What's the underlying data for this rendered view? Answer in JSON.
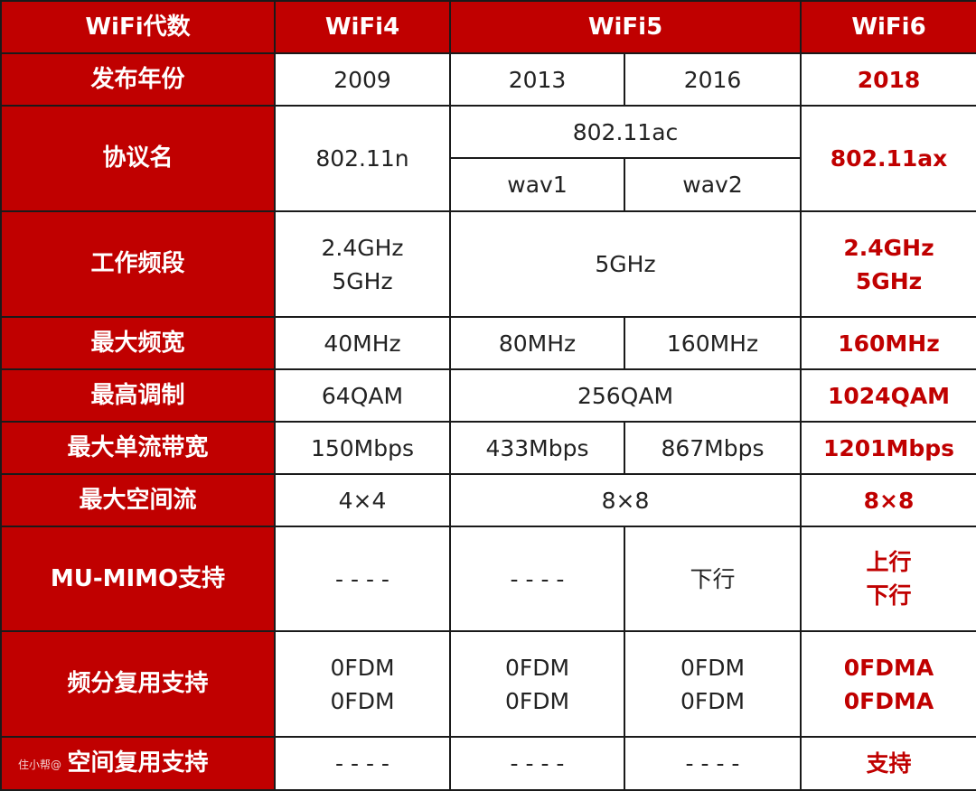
{
  "colors": {
    "accent": "#c00000",
    "border": "#1a1a1a"
  },
  "header": {
    "label": "WiFi代数",
    "wifi4": "WiFi4",
    "wifi5": "WiFi5",
    "wifi6": "WiFi6"
  },
  "rows": {
    "year": {
      "label": "发布年份",
      "wifi4": "2009",
      "wifi5a": "2013",
      "wifi5b": "2016",
      "wifi6": "2018"
    },
    "protocol": {
      "label": "协议名",
      "wifi4": "802.11n",
      "wifi5": "802.11ac",
      "wifi5a": "wav1",
      "wifi5b": "wav2",
      "wifi6": "802.11ax"
    },
    "band": {
      "label": "工作频段",
      "wifi4": [
        "2.4GHz",
        "5GHz"
      ],
      "wifi5": "5GHz",
      "wifi6": [
        "2.4GHz",
        "5GHz"
      ]
    },
    "bandwidth": {
      "label": "最大频宽",
      "wifi4": "40MHz",
      "wifi5a": "80MHz",
      "wifi5b": "160MHz",
      "wifi6": "160MHz"
    },
    "modulation": {
      "label": "最高调制",
      "wifi4": "64QAM",
      "wifi5": "256QAM",
      "wifi6": "1024QAM"
    },
    "stream_rate": {
      "label": "最大单流带宽",
      "wifi4": "150Mbps",
      "wifi5a": "433Mbps",
      "wifi5b": "867Mbps",
      "wifi6": "1201Mbps"
    },
    "spatial": {
      "label": "最大空间流",
      "wifi4": "4×4",
      "wifi5": "8×8",
      "wifi6": "8×8"
    },
    "mumimo": {
      "label": "MU-MIMO支持",
      "wifi4": "- - - -",
      "wifi5a": "- - - -",
      "wifi5b": "下行",
      "wifi6": [
        "上行",
        "下行"
      ]
    },
    "fdm": {
      "label": "频分复用支持",
      "wifi4": [
        "0FDM",
        "0FDM"
      ],
      "wifi5a": [
        "0FDM",
        "0FDM"
      ],
      "wifi5b": [
        "0FDM",
        "0FDM"
      ],
      "wifi6": [
        "0FDMA",
        "0FDMA"
      ]
    },
    "sdm": {
      "label": "空间复用支持",
      "wifi4": "- - - -",
      "wifi5a": "- - - -",
      "wifi5b": "- - - -",
      "wifi6": "支持"
    }
  },
  "watermark": "住小帮@"
}
